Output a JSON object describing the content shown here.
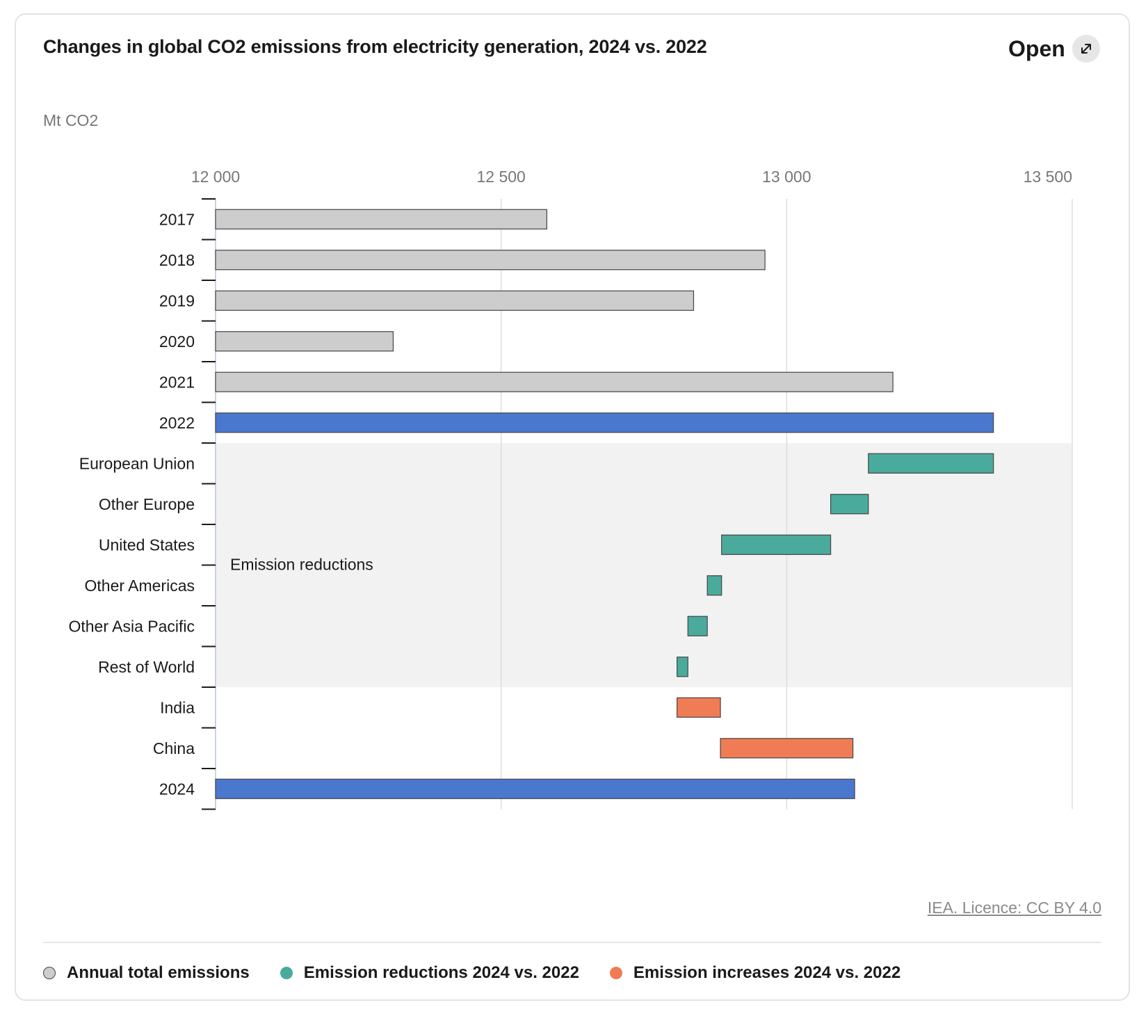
{
  "header": {
    "title": "Changes in global CO2 emissions from electricity generation, 2024 vs. 2022",
    "open_label": "Open"
  },
  "icons": {
    "open": "external-expand-icon"
  },
  "chart_data": {
    "type": "bar",
    "subtype": "waterfall",
    "orientation": "horizontal",
    "unit_label": "Mt CO2",
    "xlim": [
      12000,
      13500
    ],
    "x_ticks": [
      12000,
      12500,
      13000,
      13500
    ],
    "x_tick_labels": [
      "12 000",
      "12 500",
      "13 000",
      "13 500"
    ],
    "categories": [
      "2017",
      "2018",
      "2019",
      "2020",
      "2021",
      "2022",
      "European Union",
      "Other Europe",
      "United States",
      "Other Americas",
      "Other Asia Pacific",
      "Rest of World",
      "India",
      "China",
      "2024"
    ],
    "bars": [
      {
        "category": "2017",
        "kind": "total",
        "start": 12000,
        "end": 12580
      },
      {
        "category": "2018",
        "kind": "total",
        "start": 12000,
        "end": 12962
      },
      {
        "category": "2019",
        "kind": "total",
        "start": 12000,
        "end": 12837
      },
      {
        "category": "2020",
        "kind": "total",
        "start": 12000,
        "end": 12311
      },
      {
        "category": "2021",
        "kind": "total",
        "start": 12000,
        "end": 13186
      },
      {
        "category": "2022",
        "kind": "highlight",
        "start": 12000,
        "end": 13362
      },
      {
        "category": "European Union",
        "kind": "reduction",
        "start": 13143,
        "end": 13362
      },
      {
        "category": "Other Europe",
        "kind": "reduction",
        "start": 13077,
        "end": 13143
      },
      {
        "category": "United States",
        "kind": "reduction",
        "start": 12886,
        "end": 13077
      },
      {
        "category": "Other Americas",
        "kind": "reduction",
        "start": 12861,
        "end": 12886
      },
      {
        "category": "Other Asia Pacific",
        "kind": "reduction",
        "start": 12827,
        "end": 12861
      },
      {
        "category": "Rest of World",
        "kind": "reduction",
        "start": 12808,
        "end": 12827
      },
      {
        "category": "India",
        "kind": "increase",
        "start": 12808,
        "end": 12884
      },
      {
        "category": "China",
        "kind": "increase",
        "start": 12884,
        "end": 13116
      },
      {
        "category": "2024",
        "kind": "highlight",
        "start": 12000,
        "end": 13119
      }
    ],
    "shaded_region": {
      "label": "Emission reductions",
      "from_category": "European Union",
      "to_category": "Rest of World"
    },
    "colors": {
      "total": "#cdcdcd",
      "highlight": "#4a78cf",
      "reduction": "#4aab9c",
      "increase": "#f07c56",
      "shade": "#f2f2f2",
      "grid": "#dedede"
    },
    "legend_position": "bottom-left",
    "grid": true
  },
  "source": {
    "text": "IEA. Licence: CC BY 4.0"
  },
  "legend": [
    {
      "label": "Annual total emissions",
      "color": "#cdcdcd"
    },
    {
      "label": "Emission reductions 2024 vs. 2022",
      "color": "#4aab9c"
    },
    {
      "label": "Emission increases 2024 vs. 2022",
      "color": "#f07c56"
    }
  ]
}
